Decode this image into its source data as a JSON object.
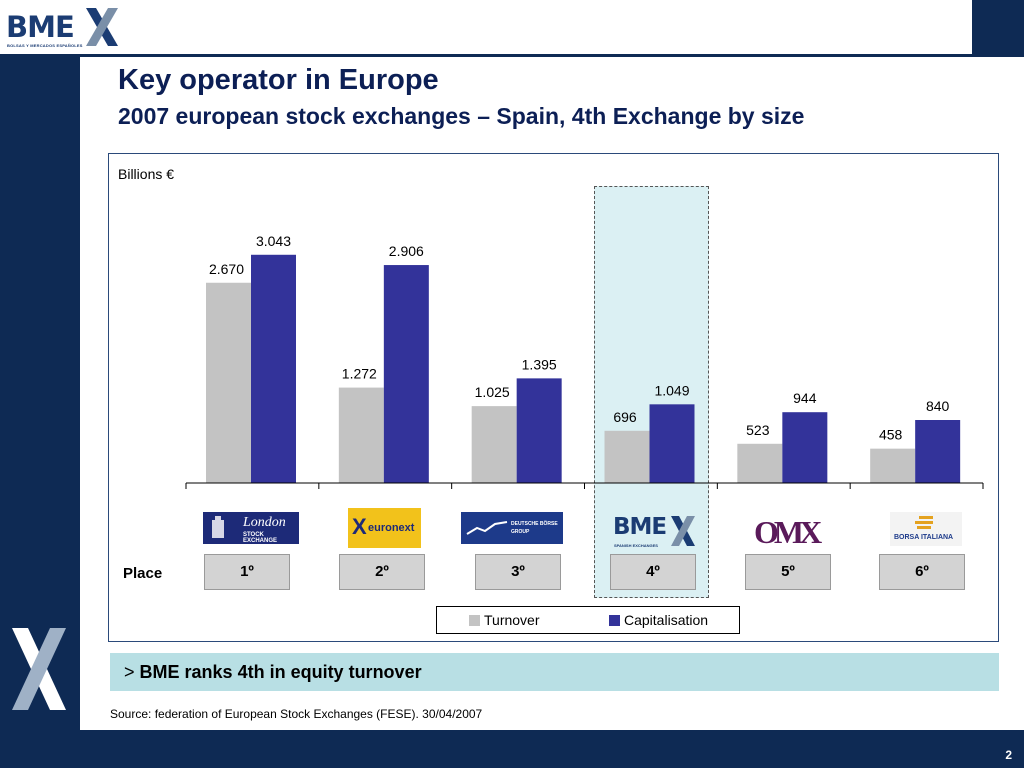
{
  "brand": {
    "logo_text": "BME",
    "logo_subtext": "BOLSAS Y MERCADOS ESPAÑOLES"
  },
  "title": "Key operator in Europe",
  "subtitle": "2007 european stock exchanges – Spain, 4th Exchange by size",
  "colors": {
    "navy": "#0e2a54",
    "turnover": "#c3c3c3",
    "capitalisation": "#33339a",
    "highlight": "#dbf0f3",
    "callout": "#b8dfe4"
  },
  "chart_data": {
    "type": "bar",
    "unit_label": "Billions €",
    "categories": [
      "London Stock Exchange",
      "Euronext",
      "Deutsche Börse Group",
      "BME",
      "OMX",
      "Borsa Italiana"
    ],
    "series": [
      {
        "name": "Turnover",
        "values": [
          2670,
          1272,
          1025,
          696,
          523,
          458
        ],
        "labels": [
          "2.670",
          "1.272",
          "1.025",
          "696",
          "523",
          "458"
        ]
      },
      {
        "name": "Capitalisation",
        "values": [
          3043,
          2906,
          1395,
          1049,
          944,
          840
        ],
        "labels": [
          "3.043",
          "2.906",
          "1.395",
          "1.049",
          "944",
          "840"
        ]
      }
    ],
    "ylim": [
      0,
      3400
    ],
    "highlight_category": "BME",
    "legend_position": "bottom",
    "grid": false
  },
  "logos": [
    {
      "name": "London",
      "text": "London",
      "sub": "STOCK EXCHANGE"
    },
    {
      "name": "Euronext",
      "text": "euronext"
    },
    {
      "name": "Deutsche",
      "text": "DEUTSCHE BÖRSE",
      "sub": "GROUP"
    },
    {
      "name": "BME",
      "text": "BME",
      "sub": "SPANISH EXCHANGES"
    },
    {
      "name": "OMX",
      "text": "OMX"
    },
    {
      "name": "Borsa",
      "text": "BORSA ITALIANA"
    }
  ],
  "place": {
    "label": "Place",
    "ranks": [
      "1º",
      "2º",
      "3º",
      "4º",
      "5º",
      "6º"
    ]
  },
  "callout": {
    "prefix": ">",
    "text": "BME ranks 4th in equity turnover"
  },
  "source": "Source: federation of European Stock Exchanges (FESE). 30/04/2007",
  "page_number": "2"
}
